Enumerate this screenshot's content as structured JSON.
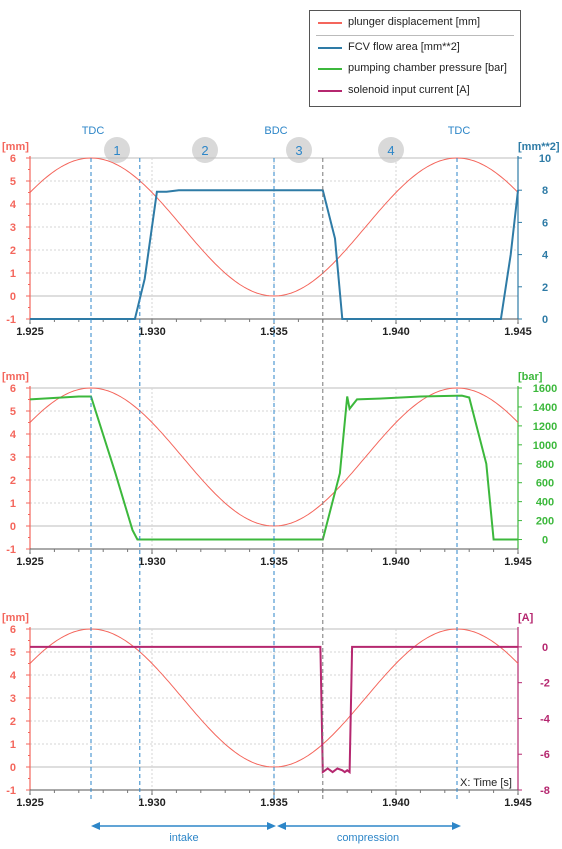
{
  "legend": {
    "items": [
      {
        "label": "plunger displacement [mm]",
        "color": "#f4665c"
      },
      {
        "label": "FCV flow area [mm**2]",
        "color": "#2e7ba6"
      },
      {
        "label": "pumping chamber pressure [bar]",
        "color": "#3cb83c"
      },
      {
        "label": "solenoid input current [A]",
        "color": "#b5276f"
      }
    ]
  },
  "annotations": {
    "tdc_left": "TDC",
    "bdc": "BDC",
    "tdc_right": "TDC",
    "phases": [
      "1",
      "2",
      "3",
      "4"
    ],
    "intake": "intake",
    "compression": "compression",
    "x_axis_label": "X: Time [s]"
  },
  "colors": {
    "displacement": "#f4665c",
    "flow_area": "#2e7ba6",
    "pressure": "#3cb83c",
    "current": "#b5276f",
    "annotation_blue": "#2d86c8",
    "phase_circle": "#d9d9d9"
  },
  "chart_data": [
    {
      "type": "line",
      "x_ticks": [
        "1.925",
        "1.930",
        "1.935",
        "1.940",
        "1.945"
      ],
      "xlim": [
        1.925,
        1.945
      ],
      "left_axis": {
        "label": "[mm]",
        "ylim": [
          -1,
          6
        ],
        "ticks": [
          "-1",
          "0",
          "1",
          "2",
          "3",
          "4",
          "5",
          "6"
        ]
      },
      "right_axis": {
        "label": "[mm**2]",
        "ylim": [
          0,
          10
        ],
        "ticks": [
          "0",
          "2",
          "4",
          "6",
          "8",
          "10"
        ]
      },
      "series": [
        {
          "name": "plunger displacement [mm]",
          "axis": "left",
          "color": "#f4665c",
          "x": [
            1.925,
            1.9265,
            1.9275,
            1.9285,
            1.93,
            1.9315,
            1.933,
            1.9342,
            1.935,
            1.9358,
            1.937,
            1.9385,
            1.94,
            1.9415,
            1.9425,
            1.9435,
            1.945
          ],
          "y": [
            4.85,
            5.75,
            6.0,
            5.7,
            4.5,
            2.95,
            1.3,
            0.25,
            0.0,
            0.25,
            1.3,
            2.95,
            4.5,
            5.7,
            6.0,
            5.75,
            4.85
          ]
        },
        {
          "name": "FCV flow area [mm**2]",
          "axis": "right",
          "color": "#2e7ba6",
          "x": [
            1.925,
            1.9293,
            1.9297,
            1.9302,
            1.9306,
            1.9311,
            1.937,
            1.9375,
            1.9378,
            1.9443,
            1.9447,
            1.945
          ],
          "y": [
            0,
            0,
            2.5,
            7.9,
            7.9,
            8.0,
            8.0,
            5.0,
            0,
            0,
            4.0,
            8.0
          ]
        }
      ]
    },
    {
      "type": "line",
      "x_ticks": [
        "1.925",
        "1.930",
        "1.935",
        "1.940",
        "1.945"
      ],
      "xlim": [
        1.925,
        1.945
      ],
      "left_axis": {
        "label": "[mm]",
        "ylim": [
          -1,
          6
        ],
        "ticks": [
          "-1",
          "0",
          "1",
          "2",
          "3",
          "4",
          "5",
          "6"
        ]
      },
      "right_axis": {
        "label": "[bar]",
        "ylim": [
          -100,
          1600
        ],
        "ticks": [
          "0",
          "200",
          "400",
          "600",
          "800",
          "1000",
          "1200",
          "1400",
          "1600"
        ]
      },
      "series": [
        {
          "name": "plunger displacement [mm]",
          "axis": "left",
          "color": "#f4665c",
          "x": [
            1.925,
            1.9265,
            1.9275,
            1.9285,
            1.93,
            1.9315,
            1.933,
            1.9342,
            1.935,
            1.9358,
            1.937,
            1.9385,
            1.94,
            1.9415,
            1.9425,
            1.9435,
            1.945
          ],
          "y": [
            4.85,
            5.75,
            6.0,
            5.7,
            4.5,
            2.95,
            1.3,
            0.25,
            0.0,
            0.25,
            1.3,
            2.95,
            4.5,
            5.7,
            6.0,
            5.75,
            4.85
          ]
        },
        {
          "name": "pumping chamber pressure [bar]",
          "axis": "right",
          "color": "#3cb83c",
          "x": [
            1.925,
            1.927,
            1.9275,
            1.9285,
            1.9292,
            1.9294,
            1.93,
            1.937,
            1.9377,
            1.938,
            1.9381,
            1.9384,
            1.9395,
            1.941,
            1.9427,
            1.943,
            1.9437,
            1.944,
            1.945
          ],
          "y": [
            1480,
            1510,
            1510,
            700,
            100,
            0,
            0,
            0,
            700,
            1510,
            1380,
            1480,
            1490,
            1510,
            1520,
            1500,
            800,
            0,
            0
          ]
        }
      ]
    },
    {
      "type": "line",
      "x_ticks": [
        "1.925",
        "1.930",
        "1.935",
        "1.940",
        "1.945"
      ],
      "xlim": [
        1.925,
        1.945
      ],
      "left_axis": {
        "label": "[mm]",
        "ylim": [
          -1,
          6
        ],
        "ticks": [
          "-1",
          "0",
          "1",
          "2",
          "3",
          "4",
          "5",
          "6"
        ]
      },
      "right_axis": {
        "label": "[A]",
        "ylim": [
          -8,
          1
        ],
        "ticks": [
          "0",
          "-2",
          "-4",
          "-6",
          "-8"
        ]
      },
      "series": [
        {
          "name": "plunger displacement [mm]",
          "axis": "left",
          "color": "#f4665c",
          "x": [
            1.925,
            1.9265,
            1.9275,
            1.9285,
            1.93,
            1.9315,
            1.933,
            1.9342,
            1.935,
            1.9358,
            1.937,
            1.9385,
            1.94,
            1.9415,
            1.9425,
            1.9435,
            1.945
          ],
          "y": [
            4.85,
            5.75,
            6.0,
            5.7,
            4.5,
            2.95,
            1.3,
            0.25,
            0.0,
            0.25,
            1.3,
            2.95,
            4.5,
            5.7,
            6.0,
            5.75,
            4.85
          ]
        },
        {
          "name": "solenoid input current [A]",
          "axis": "right",
          "color": "#b5276f",
          "x": [
            1.925,
            1.9369,
            1.937,
            1.9372,
            1.9374,
            1.9376,
            1.9378,
            1.9379,
            1.938,
            1.9381,
            1.9382,
            1.945
          ],
          "y": [
            0,
            0,
            -7.0,
            -6.8,
            -7.0,
            -6.8,
            -6.9,
            -7.0,
            -6.9,
            -7.0,
            0,
            0
          ]
        }
      ]
    }
  ],
  "markers": {
    "dashed_x": [
      1.9275,
      1.9295,
      1.935,
      1.937,
      1.9425
    ]
  }
}
